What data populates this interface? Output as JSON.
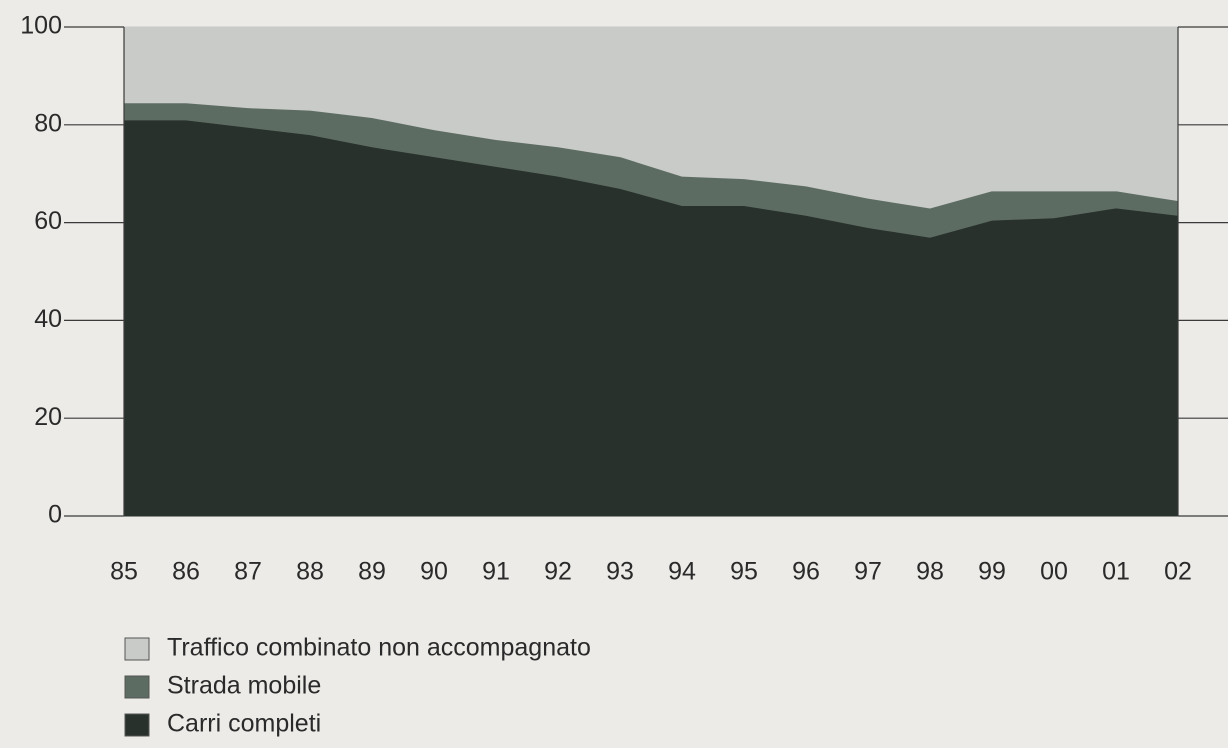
{
  "chart_data": {
    "type": "stacked_area",
    "categories": [
      "85",
      "86",
      "87",
      "88",
      "89",
      "90",
      "91",
      "92",
      "93",
      "94",
      "95",
      "96",
      "97",
      "98",
      "99",
      "00",
      "01",
      "02"
    ],
    "series": [
      {
        "name": "Carri completi",
        "color": "#28312c",
        "values": [
          81,
          81,
          79.5,
          78,
          75.5,
          73.5,
          71.5,
          69.5,
          67,
          63.5,
          63.5,
          61.5,
          59,
          57,
          60.5,
          61,
          63,
          61.5
        ]
      },
      {
        "name": "Strada mobile",
        "color": "#5d6c63",
        "values": [
          3.5,
          3.5,
          4,
          5,
          6,
          5.5,
          5.5,
          6,
          6.5,
          6,
          5.5,
          6,
          6,
          6,
          6,
          5.5,
          3.5,
          3
        ]
      },
      {
        "name": "Traffico combinato non accompagnato",
        "color": "#c9cbc8",
        "values": [
          15.5,
          15.5,
          16.5,
          17,
          18.5,
          21,
          23,
          24.5,
          26.5,
          30.5,
          31,
          32.5,
          35,
          37,
          33.5,
          33.5,
          33.5,
          35.5
        ]
      }
    ],
    "ylim": [
      0,
      100
    ],
    "yticks": [
      0,
      20,
      40,
      60,
      80,
      100
    ]
  }
}
